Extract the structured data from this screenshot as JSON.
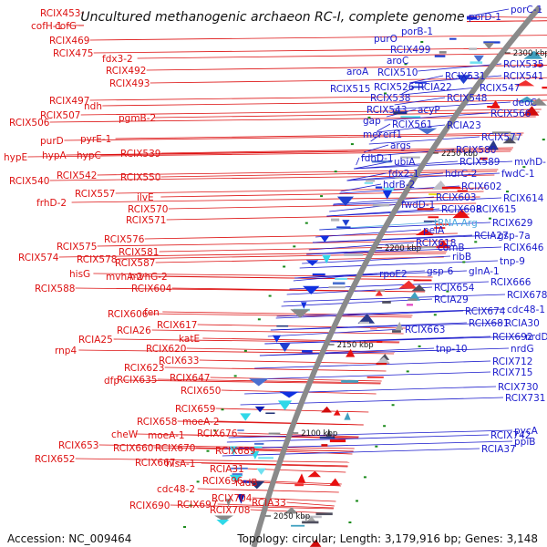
{
  "title": "Uncultured methanogenic archaeon RC-I, complete genome",
  "footer": {
    "accession": "Accession: NC_009464",
    "summary": "Topology: circular; Length: 3,179,916 bp; Genes: 3,148"
  },
  "colors": {
    "left_labels": "#dd1111",
    "right_labels": "#1a1acc",
    "trna_label": "#4aa8e0",
    "backbone": "#8a8a8a"
  },
  "ticks": [
    "2300 kbp",
    "2250 kbp",
    "2200 kbp",
    "2150 kbp",
    "2100 kbp",
    "2050 kbp"
  ],
  "left_labels": [
    "RCIX453",
    "cofH-1",
    "cofG",
    "RCIX469",
    "RCIX475",
    "fdx3-2",
    "RCIX492",
    "RCIX493",
    "RCIX497",
    "ndh",
    "RCIX507",
    "pgmB-2",
    "RCIX506",
    "purD",
    "pyrE-1",
    "hypE",
    "hypA",
    "hypC",
    "RCIX539",
    "RCIX540",
    "RCIX542",
    "RCIX550",
    "RCIX557",
    "frhD-2",
    "ilvE",
    "RCIX570",
    "RCIX571",
    "RCIX576",
    "RCIX575",
    "RCIX581",
    "RCIX574",
    "RCIX578",
    "RCIX587",
    "hisG",
    "mvhA-2",
    "mvhG-2",
    "RCIX588",
    "RCIX604",
    "RCIX606",
    "fen",
    "RCIX617",
    "RCIA26",
    "RCIA25",
    "rnp4",
    "katE",
    "RCIX620",
    "RCIX633",
    "RCIX623",
    "RCIX635",
    "RCIX647",
    "dfp",
    "RCIX650",
    "RCIX659",
    "RCIX658",
    "moeA-2",
    "cheW",
    "moeA-1",
    "RCIX676",
    "RCIX653",
    "RCIX660",
    "RCIX670",
    "RCIX652",
    "RCIX667",
    "hisA-1",
    "RCIX689",
    "RCIA31",
    "cdc48-2",
    "RCIX696",
    "radB",
    "RCIX704",
    "RCIX690",
    "RCIX697",
    "RCIX708",
    "RCIA33"
  ],
  "right_labels": [
    "porC-1",
    "porD-1",
    "porB-1",
    "purO",
    "RCIX499",
    "aroC",
    "aroA",
    "RCIX510",
    "RCIX535",
    "RCIX531",
    "RCIX541",
    "RCIX526",
    "RCIA22",
    "RCIX547",
    "RCIX515",
    "RCIX538",
    "RCIX548",
    "deoC",
    "RCIX543",
    "acyP",
    "RCIX566",
    "gap",
    "RCIX561",
    "RCIA23",
    "mer",
    "erf1",
    "args",
    "RCIX577",
    "RCIX580",
    "ubiA",
    "fdhD-1",
    "RCIX589",
    "mvhD-1",
    "fdx2-1",
    "hdrC-2",
    "fwdC-1",
    "hdrB-2",
    "RCIX602",
    "RCIX603",
    "RCIX614",
    "fwdD-1",
    "RCIX608",
    "RCIX615",
    "pelA",
    "tRNA-Arg",
    "RCIX629",
    "RCIX618",
    "comB",
    "RCIA27",
    "gsp-7a",
    "ribB",
    "RCIX646",
    "tnp-9",
    "rpoE2",
    "gsp-6",
    "glnA-1",
    "RCIX654",
    "RCIX666",
    "RCIA29",
    "RCIX678",
    "RCIX674",
    "cdc48-1",
    "RCIX663",
    "RCIX681",
    "RCIA30",
    "RCIX692",
    "nrdD",
    "tnp-10",
    "nrdG",
    "RCIX712",
    "RCIX715",
    "RCIX730",
    "RCIX731",
    "RCIX742",
    "pycA",
    "RCIA37",
    "ppiB"
  ]
}
